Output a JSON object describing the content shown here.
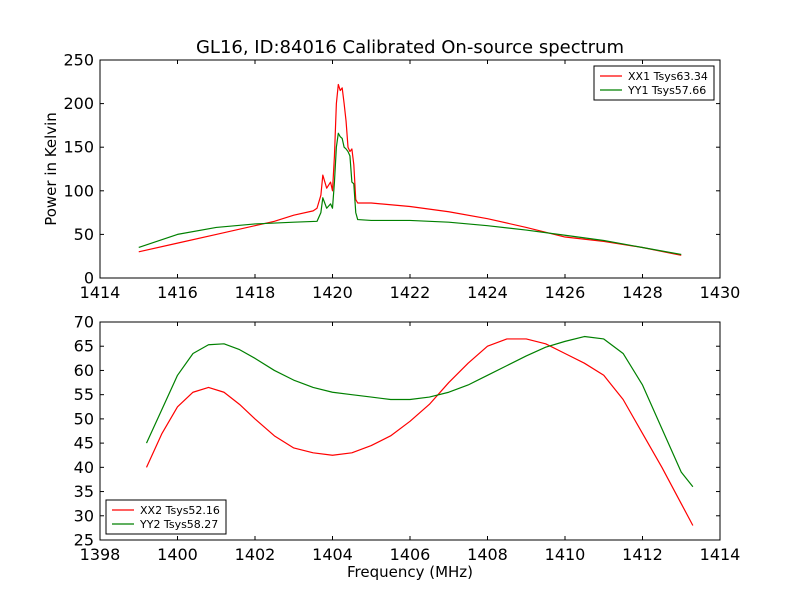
{
  "figure": {
    "title": "GL16, ID:84016 Calibrated On-source spectrum"
  },
  "chart_data": [
    {
      "type": "line",
      "title": "GL16, ID:84016 Calibrated On-source spectrum",
      "xlabel": "",
      "ylabel": "Power in Kelvin",
      "xlim": [
        1414,
        1430
      ],
      "ylim": [
        0,
        250
      ],
      "xticks": [
        1414,
        1416,
        1418,
        1420,
        1422,
        1424,
        1426,
        1428,
        1430
      ],
      "yticks": [
        0,
        50,
        100,
        150,
        200,
        250
      ],
      "xtick_labels": [
        "1414",
        "1416",
        "1418",
        "1420",
        "1422",
        "1424",
        "1426",
        "1428",
        "1430"
      ],
      "ytick_labels": [
        "0",
        "50",
        "100",
        "150",
        "200",
        "250"
      ],
      "grid": false,
      "legend_position": "top-right",
      "series": [
        {
          "name": "XX1 Tsys63.34",
          "color": "#ff0000",
          "x": [
            1415.0,
            1416.0,
            1417.0,
            1418.0,
            1418.5,
            1419.0,
            1419.5,
            1419.6,
            1419.7,
            1419.75,
            1419.85,
            1419.95,
            1420.0,
            1420.05,
            1420.1,
            1420.15,
            1420.2,
            1420.25,
            1420.3,
            1420.35,
            1420.4,
            1420.45,
            1420.5,
            1420.55,
            1420.6,
            1420.65,
            1421.0,
            1422.0,
            1423.0,
            1424.0,
            1425.0,
            1426.0,
            1427.0,
            1428.0,
            1429.0
          ],
          "y": [
            30,
            40,
            50,
            60,
            65,
            72,
            77,
            80,
            95,
            118,
            103,
            110,
            100,
            140,
            200,
            222,
            215,
            218,
            200,
            180,
            150,
            145,
            148,
            130,
            90,
            86,
            86,
            82,
            76,
            68,
            58,
            47,
            42,
            35,
            26
          ]
        },
        {
          "name": "YY1 Tsys57.66",
          "color": "#008000",
          "x": [
            1415.0,
            1416.0,
            1417.0,
            1418.0,
            1419.0,
            1419.6,
            1419.7,
            1419.75,
            1419.85,
            1419.95,
            1420.0,
            1420.05,
            1420.1,
            1420.15,
            1420.2,
            1420.25,
            1420.3,
            1420.35,
            1420.4,
            1420.45,
            1420.5,
            1420.55,
            1420.6,
            1420.65,
            1421.0,
            1422.0,
            1423.0,
            1424.0,
            1425.0,
            1426.0,
            1427.0,
            1428.0,
            1429.0
          ],
          "y": [
            35,
            50,
            58,
            62,
            64,
            65,
            75,
            92,
            80,
            85,
            80,
            110,
            150,
            166,
            162,
            160,
            150,
            148,
            145,
            140,
            110,
            108,
            75,
            67,
            66,
            66,
            64,
            60,
            55,
            49,
            43,
            35,
            27
          ]
        }
      ]
    },
    {
      "type": "line",
      "title": "",
      "xlabel": "Frequency (MHz)",
      "ylabel": "",
      "xlim": [
        1398,
        1414
      ],
      "ylim": [
        25,
        70
      ],
      "xticks": [
        1398,
        1400,
        1402,
        1404,
        1406,
        1408,
        1410,
        1412,
        1414
      ],
      "yticks": [
        25,
        30,
        35,
        40,
        45,
        50,
        55,
        60,
        65,
        70
      ],
      "xtick_labels": [
        "1398",
        "1400",
        "1402",
        "1404",
        "1406",
        "1408",
        "1410",
        "1412",
        "1414"
      ],
      "ytick_labels": [
        "25",
        "30",
        "35",
        "40",
        "45",
        "50",
        "55",
        "60",
        "65",
        "70"
      ],
      "grid": false,
      "legend_position": "bottom-left",
      "series": [
        {
          "name": "XX2 Tsys52.16",
          "color": "#ff0000",
          "x": [
            1399.2,
            1399.6,
            1400.0,
            1400.4,
            1400.8,
            1401.2,
            1401.6,
            1402.0,
            1402.5,
            1403.0,
            1403.5,
            1404.0,
            1404.5,
            1405.0,
            1405.5,
            1406.0,
            1406.5,
            1407.0,
            1407.5,
            1408.0,
            1408.5,
            1409.0,
            1409.5,
            1410.0,
            1410.5,
            1411.0,
            1411.5,
            1412.0,
            1412.5,
            1413.0,
            1413.3
          ],
          "y": [
            40,
            47,
            52.5,
            55.5,
            56.5,
            55.5,
            53,
            50,
            46.5,
            44,
            43,
            42.5,
            43,
            44.5,
            46.5,
            49.5,
            53,
            57.5,
            61.5,
            65,
            66.5,
            66.5,
            65.5,
            63.5,
            61.5,
            59,
            54,
            47,
            40,
            32.5,
            28
          ]
        },
        {
          "name": "YY2 Tsys58.27",
          "color": "#008000",
          "x": [
            1399.2,
            1399.6,
            1400.0,
            1400.4,
            1400.8,
            1401.2,
            1401.6,
            1402.0,
            1402.5,
            1403.0,
            1403.5,
            1404.0,
            1404.5,
            1405.0,
            1405.5,
            1406.0,
            1406.5,
            1407.0,
            1407.5,
            1408.0,
            1408.5,
            1409.0,
            1409.5,
            1410.0,
            1410.5,
            1411.0,
            1411.5,
            1412.0,
            1412.5,
            1413.0,
            1413.3
          ],
          "y": [
            45,
            52,
            59,
            63.5,
            65.3,
            65.5,
            64.3,
            62.5,
            60,
            58,
            56.5,
            55.5,
            55,
            54.5,
            54,
            54,
            54.5,
            55.5,
            57,
            59,
            61,
            63,
            64.8,
            66,
            67,
            66.5,
            63.5,
            57,
            48,
            39,
            36
          ]
        }
      ]
    }
  ]
}
